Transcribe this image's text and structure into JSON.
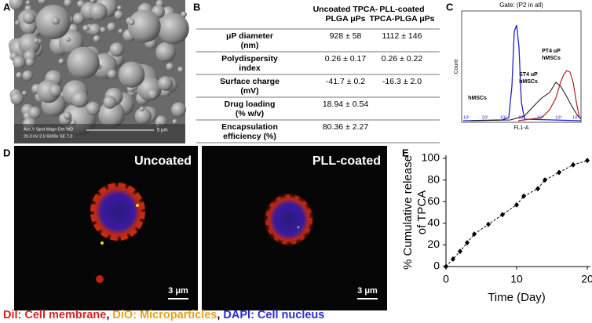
{
  "labels": {
    "a": "A",
    "b": "B",
    "c": "C",
    "d": "D",
    "e": "E"
  },
  "sem": {
    "info_top": "Acc.V  Spot Magn   Det  WD",
    "info_bottom": "20.0 kV 2.0  6000x   SE  7.0",
    "scale": "5 μm"
  },
  "table": {
    "columns": [
      [
        "Uncoated TPCA-",
        "PLGA μPs"
      ],
      [
        "PLL-coated",
        "TPCA-PLGA μPs"
      ]
    ],
    "rows": [
      {
        "label": [
          "μP diameter",
          "(nm)"
        ],
        "cells": [
          "928 ± 58",
          "1112 ± 146"
        ]
      },
      {
        "label": [
          "Polydispersity",
          "index"
        ],
        "cells": [
          "0.26 ± 0.17",
          "0.26 ± 0.22"
        ]
      },
      {
        "label": [
          "Surface charge",
          "(mV)"
        ],
        "cells": [
          "-41.7 ± 0.2",
          "-16.3 ± 2.0"
        ]
      },
      {
        "label": [
          "Drug loading",
          "(% w/v)"
        ],
        "cells": [
          "18.94 ± 0.54"
        ]
      },
      {
        "label": [
          "Encapsulation",
          "efficiency (%)"
        ],
        "cells": [
          "80.36 ± 2.27"
        ]
      }
    ]
  },
  "flow": {
    "title": "Gate: (P2 in all)",
    "ylabel": "Count",
    "xlabel": "FL1-A",
    "ticks": [
      "10¹",
      "10²",
      "10³",
      "10⁴",
      "10⁵",
      "10⁶",
      "10⁷·²"
    ],
    "curves": [
      [
        "hMSCs"
      ],
      [
        "ST4 uP",
        "hMSCs"
      ],
      [
        "PT4 uP",
        "hMSCs"
      ]
    ]
  },
  "images": {
    "left": "Uncoated",
    "right": "PLL-coated",
    "scale": "3 μm"
  },
  "caption": {
    "separator": ",",
    "items": [
      {
        "text": "DiI: Cell membrane",
        "color": "#d42424"
      },
      {
        "text": "DiO: Microparticles",
        "color": "#e3a21a"
      },
      {
        "text": "DAPI: Cell nucleus",
        "color": "#2b2bd6"
      }
    ]
  },
  "chart_data": {
    "type": "line",
    "xlabel": "Time (Day)",
    "ylabel": [
      "% Cumulative release",
      "of TPCA"
    ],
    "x": [
      0,
      1,
      2,
      3,
      4,
      6,
      8,
      10,
      11,
      13,
      14,
      16,
      18,
      20
    ],
    "series": [
      {
        "color": "#000000",
        "values": [
          0,
          7,
          14,
          22,
          30,
          39,
          48,
          57,
          65,
          72,
          80,
          87,
          94,
          98
        ]
      }
    ],
    "xlim": [
      0,
      20
    ],
    "xticks": [
      0,
      10,
      20
    ],
    "ylim": [
      0,
      100
    ],
    "yticks": [
      0,
      20,
      40,
      60,
      80,
      100
    ]
  }
}
